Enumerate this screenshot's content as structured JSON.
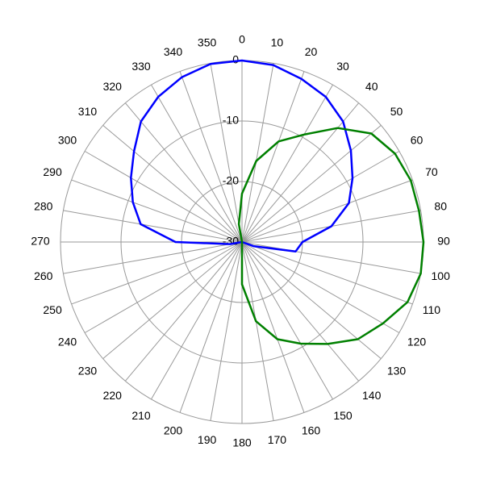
{
  "chart_data": {
    "type": "polar",
    "theta": [
      0,
      10,
      20,
      30,
      40,
      50,
      60,
      70,
      80,
      90,
      100,
      110,
      120,
      130,
      140,
      150,
      160,
      170,
      180,
      190,
      200,
      210,
      220,
      230,
      240,
      250,
      260,
      270,
      280,
      290,
      300,
      310,
      320,
      330,
      340,
      350
    ],
    "rlim": [
      -30,
      0
    ],
    "rticks": [
      -30,
      -20,
      -10,
      0
    ],
    "grid": true,
    "series": [
      {
        "color": "#0000ff",
        "values": [
          0,
          -0.3,
          -1.3,
          -2.3,
          -4,
          -6.5,
          -8.9,
          -11.2,
          -15,
          -20,
          -21,
          -28,
          -30,
          -30,
          -30,
          -30,
          -30,
          -30,
          -30,
          -30,
          -30,
          -30,
          -30,
          -30,
          -30,
          -30,
          -28,
          -19,
          -13,
          -10.8,
          -8.8,
          -6.7,
          -4,
          -2.3,
          -1,
          -0.1
        ]
      },
      {
        "color": "#008000",
        "values": [
          -22,
          -16.4,
          -12.3,
          -9.5,
          -5.4,
          -2.1,
          -0.8,
          -0.3,
          -0.3,
          0,
          0,
          -0.9,
          -3.1,
          -5,
          -8,
          -10.6,
          -12.9,
          -16.7,
          -23,
          -30,
          -30,
          -30,
          -30,
          -30,
          -30,
          -30,
          -30,
          -30,
          -30,
          -30,
          -30,
          -30,
          -30,
          -30,
          -30,
          -27
        ]
      }
    ]
  }
}
